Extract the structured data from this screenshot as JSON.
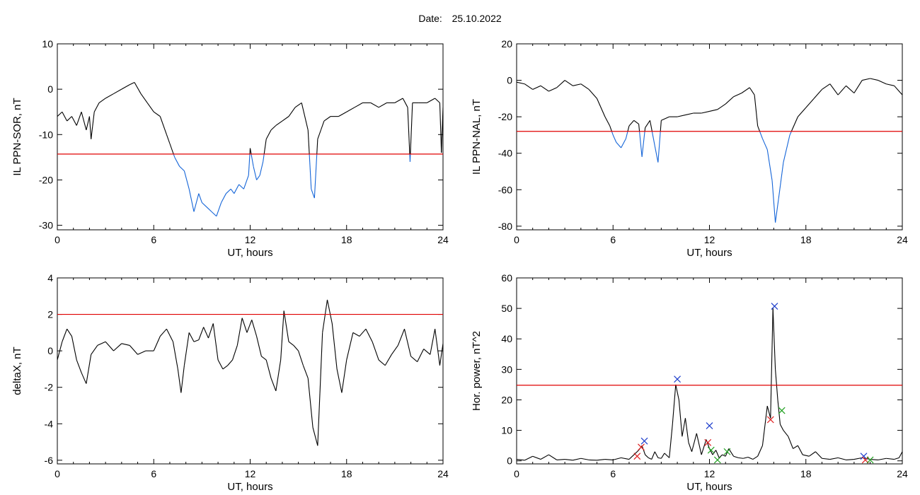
{
  "page": {
    "title_label": "Date:",
    "title_value": "25.10.2022"
  },
  "colors": {
    "trace": "#000000",
    "highlight": "#1565d8",
    "threshold": "#e00000",
    "marker_blue": "#1f3fcc",
    "marker_red": "#e02020",
    "marker_green": "#20a020"
  },
  "chart_data": [
    {
      "id": "ppn-sor",
      "type": "line",
      "xlabel": "UT, hours",
      "ylabel": "IL PPN-SOR, nT",
      "xlim": [
        0,
        24
      ],
      "ylim": [
        -31,
        10
      ],
      "xticks": [
        0,
        6,
        12,
        18,
        24
      ],
      "yticks": [
        -30,
        -20,
        -10,
        0,
        10
      ],
      "threshold": -14.3,
      "below_threshold_color": "highlight",
      "series": [
        {
          "x": [
            0,
            0.3,
            0.6,
            0.9,
            1.2,
            1.5,
            1.8,
            2.0,
            2.1,
            2.3,
            2.6,
            3.0,
            3.5,
            4.0,
            4.5,
            4.8,
            5.2,
            5.6,
            6.0,
            6.4,
            6.8,
            7.0,
            7.3,
            7.6,
            7.9,
            8.2,
            8.5,
            8.8,
            9.0,
            9.3,
            9.6,
            9.9,
            10.2,
            10.5,
            10.8,
            11.0,
            11.3,
            11.6,
            11.9,
            12.0,
            12.2,
            12.4,
            12.6,
            12.8,
            13.0,
            13.3,
            13.6,
            14.0,
            14.4,
            14.8,
            15.2,
            15.6,
            15.8,
            16.0,
            16.2,
            16.4,
            16.6,
            17.0,
            17.5,
            18.0,
            18.5,
            19.0,
            19.5,
            20.0,
            20.5,
            21.0,
            21.5,
            21.8,
            21.95,
            22.1,
            22.5,
            23.0,
            23.5,
            23.8,
            23.9,
            24.0
          ],
          "y": [
            -6,
            -5,
            -7,
            -6,
            -8,
            -5,
            -9,
            -6,
            -11,
            -5,
            -3,
            -2,
            -1,
            0,
            1,
            1.5,
            -1,
            -3,
            -5,
            -6,
            -10,
            -12,
            -15,
            -17,
            -18,
            -22,
            -27,
            -23,
            -25,
            -26,
            -27,
            -28,
            -25,
            -23,
            -22,
            -23,
            -21,
            -22,
            -19,
            -13,
            -17,
            -20,
            -19,
            -16,
            -11,
            -9,
            -8,
            -7,
            -6,
            -4,
            -3,
            -9,
            -22,
            -24,
            -11,
            -9,
            -7,
            -6,
            -6,
            -5,
            -4,
            -3,
            -3,
            -4,
            -3,
            -3,
            -2,
            -4,
            -16,
            -3,
            -3,
            -3,
            -2,
            -3,
            -14,
            -4
          ]
        }
      ]
    },
    {
      "id": "ppn-nal",
      "type": "line",
      "xlabel": "UT, hours",
      "ylabel": "IL PPN-NAL, nT",
      "xlim": [
        0,
        24
      ],
      "ylim": [
        -82,
        20
      ],
      "xticks": [
        0,
        6,
        12,
        18,
        24
      ],
      "yticks": [
        -80,
        -60,
        -40,
        -20,
        0,
        20
      ],
      "threshold": -28,
      "below_threshold_color": "highlight",
      "series": [
        {
          "x": [
            0,
            0.5,
            1.0,
            1.5,
            2.0,
            2.5,
            3.0,
            3.5,
            4.0,
            4.5,
            5.0,
            5.5,
            5.8,
            6.0,
            6.2,
            6.5,
            6.8,
            7.0,
            7.3,
            7.6,
            7.8,
            8.0,
            8.3,
            8.6,
            8.8,
            9.0,
            9.5,
            10.0,
            10.5,
            11.0,
            11.5,
            12.0,
            12.5,
            13.0,
            13.5,
            14.0,
            14.5,
            14.8,
            15.0,
            15.3,
            15.6,
            15.9,
            16.1,
            16.3,
            16.6,
            17.0,
            17.5,
            18.0,
            18.5,
            19.0,
            19.5,
            20.0,
            20.5,
            21.0,
            21.5,
            22.0,
            22.5,
            23.0,
            23.5,
            24.0
          ],
          "y": [
            -1,
            -2,
            -5,
            -3,
            -6,
            -4,
            0,
            -3,
            -2,
            -5,
            -10,
            -20,
            -25,
            -30,
            -34,
            -37,
            -32,
            -25,
            -22,
            -24,
            -42,
            -26,
            -22,
            -36,
            -45,
            -22,
            -20,
            -20,
            -19,
            -18,
            -18,
            -17,
            -16,
            -13,
            -9,
            -7,
            -4,
            -8,
            -25,
            -32,
            -38,
            -55,
            -78,
            -65,
            -45,
            -30,
            -20,
            -15,
            -10,
            -5,
            -2,
            -8,
            -3,
            -7,
            0,
            1,
            0,
            -2,
            -3,
            -8
          ]
        }
      ]
    },
    {
      "id": "deltax",
      "type": "line",
      "xlabel": "UT, hours",
      "ylabel": "deltaX, nT",
      "xlim": [
        0,
        24
      ],
      "ylim": [
        -6.2,
        4
      ],
      "xticks": [
        0,
        6,
        12,
        18,
        24
      ],
      "yticks": [
        -6,
        -4,
        -2,
        0,
        2,
        4
      ],
      "threshold": 2,
      "series": [
        {
          "x": [
            0,
            0.3,
            0.6,
            0.9,
            1.2,
            1.5,
            1.8,
            2.1,
            2.5,
            3.0,
            3.5,
            4.0,
            4.5,
            5.0,
            5.5,
            6.0,
            6.4,
            6.8,
            7.2,
            7.5,
            7.7,
            7.9,
            8.2,
            8.5,
            8.8,
            9.1,
            9.4,
            9.7,
            10.0,
            10.3,
            10.6,
            10.9,
            11.2,
            11.5,
            11.8,
            12.1,
            12.4,
            12.7,
            13.0,
            13.3,
            13.6,
            13.9,
            14.1,
            14.4,
            14.7,
            15.0,
            15.3,
            15.6,
            15.9,
            16.2,
            16.5,
            16.8,
            17.1,
            17.4,
            17.7,
            18.0,
            18.4,
            18.8,
            19.2,
            19.6,
            20.0,
            20.4,
            20.8,
            21.2,
            21.6,
            22.0,
            22.4,
            22.8,
            23.2,
            23.5,
            23.8,
            24.0
          ],
          "y": [
            -0.5,
            0.5,
            1.2,
            0.8,
            -0.5,
            -1.2,
            -1.8,
            -0.2,
            0.3,
            0.5,
            0.0,
            0.4,
            0.3,
            -0.2,
            0.0,
            0.0,
            0.8,
            1.2,
            0.5,
            -1.0,
            -2.3,
            -0.8,
            1.0,
            0.5,
            0.6,
            1.3,
            0.7,
            1.5,
            -0.5,
            -1.0,
            -0.8,
            -0.5,
            0.3,
            1.8,
            1.0,
            1.7,
            0.8,
            -0.3,
            -0.5,
            -1.5,
            -2.2,
            -0.5,
            2.2,
            0.5,
            0.3,
            0.0,
            -0.8,
            -1.5,
            -4.2,
            -5.2,
            1.0,
            2.8,
            1.5,
            -1.0,
            -2.3,
            -0.5,
            1.0,
            0.8,
            1.2,
            0.5,
            -0.5,
            -0.8,
            -0.2,
            0.3,
            1.2,
            -0.3,
            -0.6,
            0.1,
            -0.2,
            1.2,
            -0.8,
            0.4
          ]
        }
      ]
    },
    {
      "id": "hor-power",
      "type": "line",
      "xlabel": "UT, hours",
      "ylabel": "Hor. power, nT^2",
      "xlim": [
        0,
        24
      ],
      "ylim": [
        -1,
        60
      ],
      "xticks": [
        0,
        6,
        12,
        18,
        24
      ],
      "yticks": [
        0,
        10,
        20,
        30,
        40,
        50,
        60
      ],
      "threshold": 24.8,
      "series": [
        {
          "x": [
            0,
            0.5,
            1.0,
            1.5,
            2.0,
            2.5,
            3.0,
            3.5,
            4.0,
            4.5,
            5.0,
            5.5,
            6.0,
            6.5,
            7.0,
            7.3,
            7.6,
            7.8,
            8.0,
            8.2,
            8.4,
            8.6,
            8.8,
            9.0,
            9.2,
            9.5,
            9.7,
            9.9,
            10.1,
            10.3,
            10.5,
            10.7,
            10.9,
            11.2,
            11.5,
            11.8,
            12.0,
            12.2,
            12.4,
            12.6,
            12.8,
            13.0,
            13.2,
            13.5,
            13.8,
            14.1,
            14.4,
            14.7,
            15.0,
            15.3,
            15.6,
            15.8,
            15.95,
            16.1,
            16.25,
            16.4,
            16.6,
            16.9,
            17.2,
            17.5,
            17.8,
            18.2,
            18.6,
            19.0,
            19.5,
            20.0,
            20.5,
            21.0,
            21.5,
            22.0,
            22.5,
            23.0,
            23.5,
            23.8,
            24.0
          ],
          "y": [
            0.5,
            0.2,
            1.5,
            0.5,
            2.0,
            0.3,
            0.5,
            0.2,
            0.8,
            0.3,
            0.2,
            0.5,
            0.3,
            1.0,
            0.5,
            2.0,
            3.5,
            5.0,
            2.0,
            1.0,
            0.5,
            3.0,
            1.0,
            0.8,
            2.5,
            1.0,
            12.0,
            25.0,
            20.0,
            8.0,
            14.0,
            6.0,
            3.0,
            9.0,
            2.0,
            7.0,
            4.0,
            2.0,
            3.5,
            1.0,
            2.0,
            1.5,
            4.0,
            1.5,
            1.0,
            0.8,
            1.2,
            0.5,
            1.5,
            5.0,
            18.0,
            14.0,
            50.0,
            30.0,
            20.0,
            12.0,
            10.0,
            8.0,
            4.0,
            5.0,
            2.0,
            1.5,
            3.0,
            0.8,
            0.5,
            1.0,
            0.3,
            0.5,
            1.0,
            0.5,
            0.3,
            0.8,
            0.5,
            1.0,
            3.0
          ]
        }
      ],
      "markers": [
        {
          "x": 7.5,
          "y": 1.5,
          "color": "marker_red"
        },
        {
          "x": 7.75,
          "y": 4.5,
          "color": "marker_red"
        },
        {
          "x": 7.95,
          "y": 6.5,
          "color": "marker_blue"
        },
        {
          "x": 10.0,
          "y": 26.8,
          "color": "marker_blue"
        },
        {
          "x": 11.9,
          "y": 6.0,
          "color": "marker_red"
        },
        {
          "x": 12.0,
          "y": 11.5,
          "color": "marker_blue"
        },
        {
          "x": 12.1,
          "y": 3.5,
          "color": "marker_green"
        },
        {
          "x": 12.5,
          "y": 0.3,
          "color": "marker_green"
        },
        {
          "x": 13.1,
          "y": 3.0,
          "color": "marker_green"
        },
        {
          "x": 15.8,
          "y": 13.5,
          "color": "marker_red"
        },
        {
          "x": 16.05,
          "y": 50.7,
          "color": "marker_blue"
        },
        {
          "x": 16.5,
          "y": 16.5,
          "color": "marker_green"
        },
        {
          "x": 21.6,
          "y": 1.5,
          "color": "marker_blue"
        },
        {
          "x": 21.7,
          "y": 0.3,
          "color": "marker_red"
        },
        {
          "x": 22.0,
          "y": 0.3,
          "color": "marker_green"
        }
      ]
    }
  ]
}
